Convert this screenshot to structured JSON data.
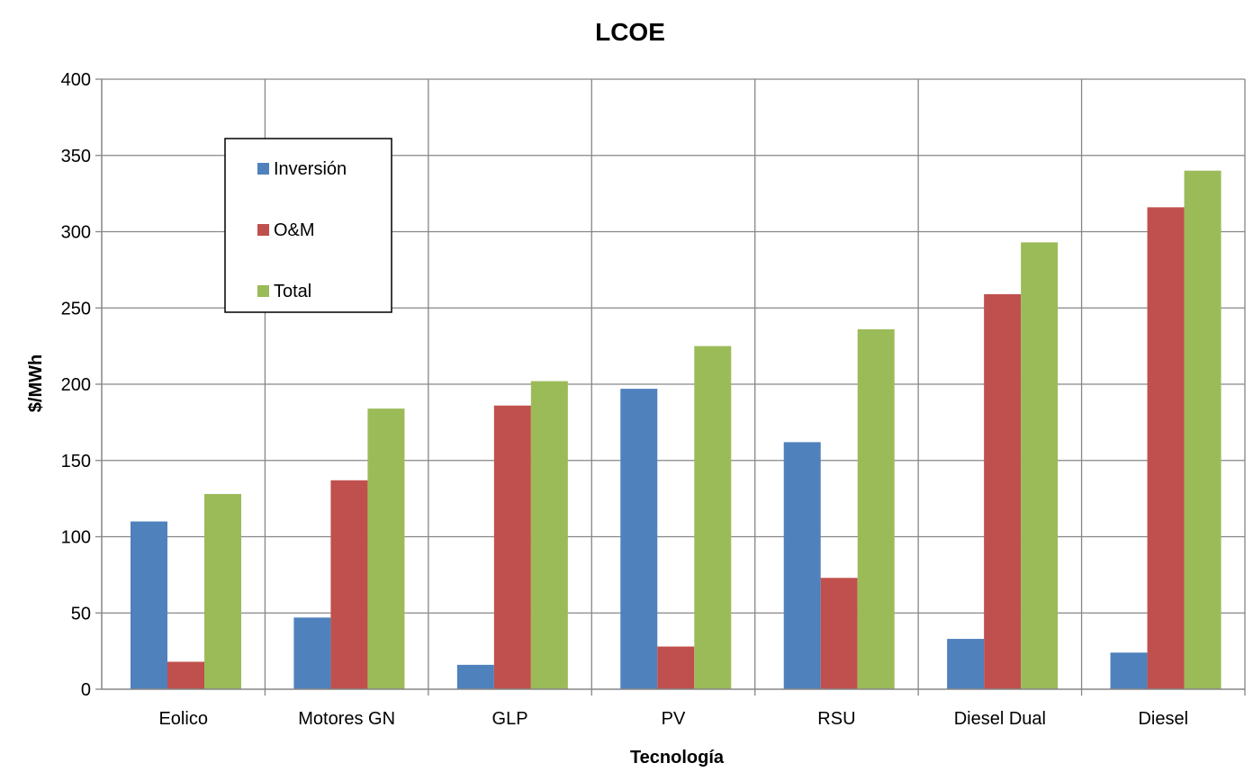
{
  "chart_data": {
    "type": "bar",
    "title": "LCOE",
    "xlabel": "Tecnología",
    "ylabel": "$/MWh",
    "ylim": [
      0,
      400
    ],
    "yticks": [
      0,
      50,
      100,
      150,
      200,
      250,
      300,
      350,
      400
    ],
    "grid": true,
    "legend_position": "top-left, inside plot",
    "categories": [
      "Eolico",
      "Motores GN",
      "GLP",
      "PV",
      "RSU",
      "Diesel Dual",
      "Diesel"
    ],
    "series": [
      {
        "name": "Inversión",
        "color": "#4F81BD",
        "values": [
          110,
          47,
          16,
          197,
          162,
          33,
          24
        ]
      },
      {
        "name": "O&M",
        "color": "#C0504D",
        "values": [
          18,
          137,
          186,
          28,
          73,
          259,
          316
        ]
      },
      {
        "name": "Total",
        "color": "#9BBB59",
        "values": [
          128,
          184,
          202,
          225,
          236,
          293,
          340
        ]
      }
    ]
  }
}
